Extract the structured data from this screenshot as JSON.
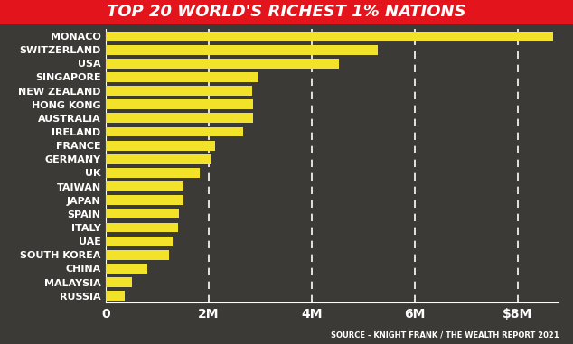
{
  "chart_data": {
    "type": "bar",
    "orientation": "horizontal",
    "title": "TOP 20 WORLD'S RICHEST 1% NATIONS",
    "source": "SOURCE - KNIGHT FRANK / THE WEALTH REPORT 2021",
    "categories": [
      "MONACO",
      "SWITZERLAND",
      "USA",
      "SINGAPORE",
      "NEW ZEALAND",
      "HONG KONG",
      "AUSTRALIA",
      "IRELAND",
      "FRANCE",
      "GERMANY",
      "UK",
      "TAIWAN",
      "JAPAN",
      "SPAIN",
      "ITALY",
      "UAE",
      "SOUTH KOREA",
      "CHINA",
      "MALAYSIA",
      "RUSSIA"
    ],
    "values": [
      8700000,
      5280000,
      4530000,
      2970000,
      2840000,
      2860000,
      2860000,
      2660000,
      2120000,
      2050000,
      1830000,
      1500000,
      1500000,
      1410000,
      1400000,
      1290000,
      1220000,
      810000,
      500000,
      360000
    ],
    "color": "#f2e22a",
    "xlim": [
      0,
      8800000
    ],
    "xticks": [
      0,
      {
        "value": 2000000,
        "label": "2M"
      },
      {
        "value": 4000000,
        "label": "4M"
      },
      {
        "value": 6000000,
        "label": "6M"
      },
      {
        "value": 8000000,
        "label": "$8M"
      }
    ],
    "grid": true
  }
}
